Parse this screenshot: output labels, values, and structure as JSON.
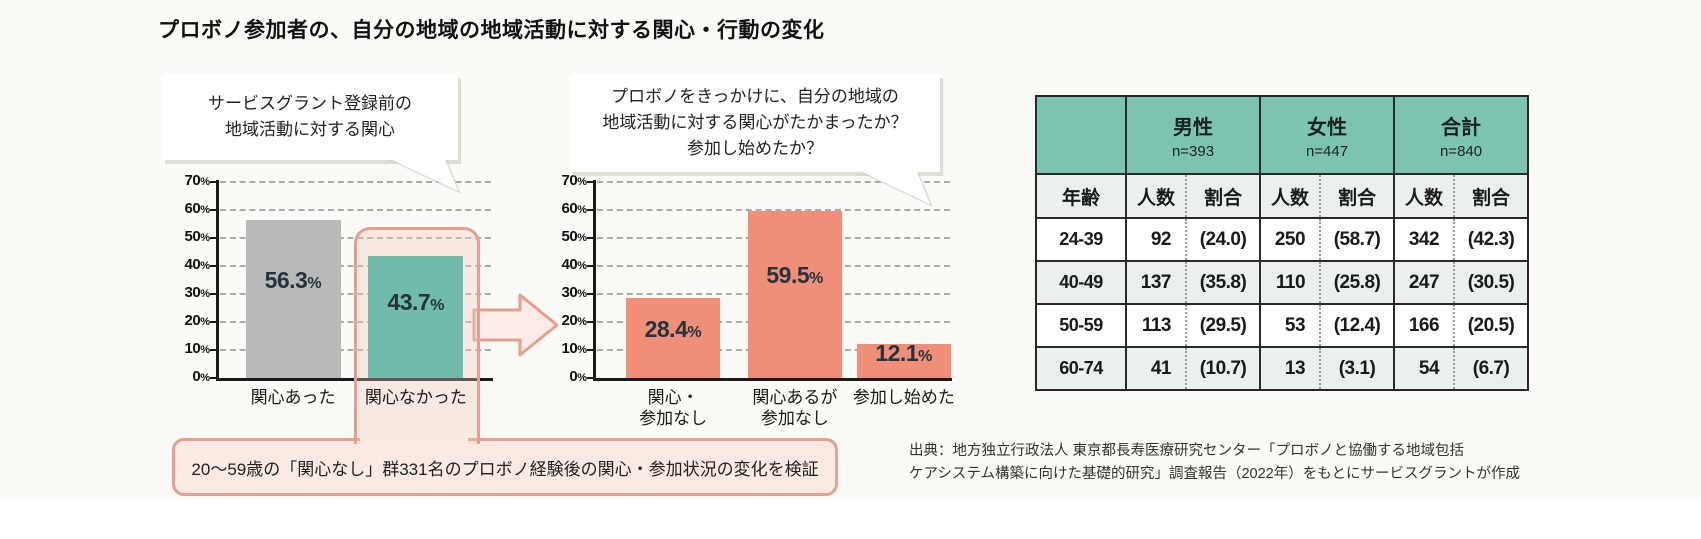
{
  "title": "プロボノ参加者の、自分の地域の地域活動に対する関心・行動の変化",
  "bubble_left": {
    "lines": [
      "サービスグラント登録前の",
      "地域活動に対する関心"
    ]
  },
  "bubble_right": {
    "lines": [
      "プロボノをきっかけに、自分の地域の",
      "地域活動に対する関心がたかまったか？",
      "参加し始めたか？"
    ]
  },
  "chart_data": [
    {
      "type": "bar",
      "title": "サービスグラント登録前の地域活動に対する関心",
      "categories": [
        [
          "関心あった"
        ],
        [
          "関心なかった"
        ]
      ],
      "values": [
        56.3,
        43.7
      ],
      "unit": "%",
      "bar_colors": [
        "#b9b9b9",
        "#6fbcab"
      ],
      "ylim": [
        0,
        70
      ],
      "ytick_step": 10,
      "grid": true,
      "legend": "none",
      "highlighted_category": "関心なかった"
    },
    {
      "type": "bar",
      "title": "プロボノをきっかけに、自分の地域の地域活動に対する関心がたかまったか？参加し始めたか？",
      "categories": [
        [
          "関心・",
          "参加なし"
        ],
        [
          "関心あるが",
          "参加なし"
        ],
        [
          "参加し始めた"
        ]
      ],
      "values": [
        28.4,
        59.5,
        12.1
      ],
      "unit": "%",
      "bar_colors": [
        "#ef8e79",
        "#ef8e79",
        "#ef8e79"
      ],
      "ylim": [
        0,
        70
      ],
      "ytick_step": 10,
      "grid": true,
      "legend": "none"
    }
  ],
  "table": {
    "groups": [
      {
        "label": "男性",
        "n": "n=393"
      },
      {
        "label": "女性",
        "n": "n=447"
      },
      {
        "label": "合計",
        "n": "n=840"
      }
    ],
    "sub_headers": [
      "年齢",
      "人数",
      "割合",
      "人数",
      "割合",
      "人数",
      "割合"
    ],
    "rows": [
      [
        "24-39",
        "92",
        "(24.0)",
        "250",
        "(58.7)",
        "342",
        "(42.3)"
      ],
      [
        "40-49",
        "137",
        "(35.8)",
        "110",
        "(25.8)",
        "247",
        "(30.5)"
      ],
      [
        "50-59",
        "113",
        "(29.5)",
        "53",
        "(12.4)",
        "166",
        "(20.5)"
      ],
      [
        "60-74",
        "41",
        "(10.7)",
        "13",
        "(3.1)",
        "54",
        "(6.7)"
      ]
    ]
  },
  "note_box": {
    "text": "20～59歳の「関心なし」群331名のプロボノ経験後の関心・参加状況の変化を検証"
  },
  "source_lines": [
    "出典：地方独立行政法人 東京都長寿医療研究センター「プロボノと協働する地域包括",
    "ケアシステム構築に向けた基礎的研究」調査報告（2022年）をもとにサービスグラントが作成"
  ],
  "colors": {
    "gray_bar": "#b9b9b9",
    "teal_bar": "#6fbcab",
    "salmon_bar": "#ef8e79",
    "highlight_border": "#e3a091",
    "highlight_fill": "#fbe9e4",
    "table_header_teal": "#7cc3b1",
    "table_stripe": "#e9f0ed"
  }
}
